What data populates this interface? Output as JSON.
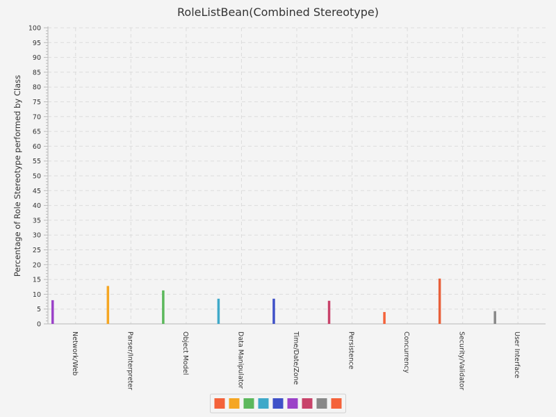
{
  "chart_data": {
    "type": "bar",
    "title": "RoleListBean(Combined Stereotype)",
    "xlabel": "",
    "ylabel": "Percentage of Role Stereotype performed by Class",
    "ylim": [
      0,
      100
    ],
    "y_major_step": 5,
    "y_minor_step": 1,
    "grid": true,
    "legend_position": "bottom",
    "categories": [
      "Network/Web",
      "Parser/Interpreter",
      "Object Model",
      "Data Manipulator",
      "Time/Date/Zone",
      "Persistence",
      "Concurrency",
      "Security/Validator",
      "User Interface"
    ],
    "values": [
      8,
      12.8,
      11.3,
      8.5,
      8.5,
      7.8,
      4,
      15.3,
      4.3
    ],
    "bar_colors": [
      "#9b42c8",
      "#f5a623",
      "#5cb85c",
      "#3fa9c9",
      "#3f51c8",
      "#c8436a",
      "#f4623a",
      "#e8603a",
      "#888888"
    ],
    "legend_colors": [
      "#f4623a",
      "#f5a623",
      "#5cb85c",
      "#3fa9c9",
      "#3f51c8",
      "#9b42c8",
      "#c8436a",
      "#888888",
      "#f4623a"
    ]
  }
}
